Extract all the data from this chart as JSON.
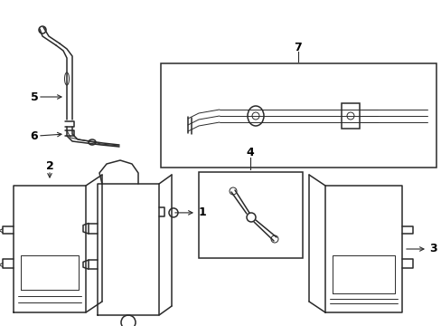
{
  "bg_color": "#ffffff",
  "line_color": "#2a2a2a",
  "label_color": "#000000",
  "lw_main": 1.1,
  "lw_thin": 0.7,
  "label_fontsize": 9
}
